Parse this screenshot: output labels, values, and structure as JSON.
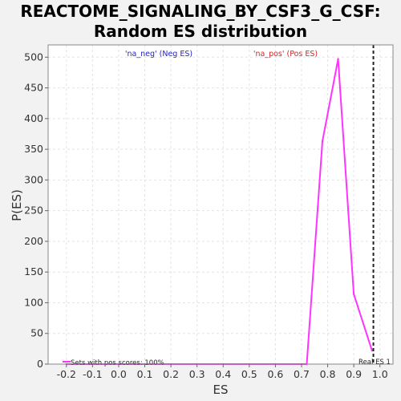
{
  "chart_data": {
    "type": "line",
    "title_line1": "REACTOME_SIGNALING_BY_CSF3_G_CSF:",
    "title_line2": "Random ES distribution",
    "xlabel": "ES",
    "ylabel": "P(ES)",
    "xlim": [
      -0.27,
      1.05
    ],
    "ylim": [
      0,
      520
    ],
    "x_ticks": [
      "-0.2",
      "-0.1",
      "0.0",
      "0.1",
      "0.2",
      "0.3",
      "0.4",
      "0.5",
      "0.6",
      "0.7",
      "0.8",
      "0.9",
      "1.0"
    ],
    "x_tick_values": [
      -0.2,
      -0.1,
      0.0,
      0.1,
      0.2,
      0.3,
      0.4,
      0.5,
      0.6,
      0.7,
      0.8,
      0.9,
      1.0
    ],
    "y_ticks": [
      "0",
      "50",
      "100",
      "150",
      "200",
      "250",
      "300",
      "350",
      "400",
      "450",
      "500"
    ],
    "y_tick_values": [
      0,
      50,
      100,
      150,
      200,
      250,
      300,
      350,
      400,
      450,
      500
    ],
    "grid": true,
    "series": [
      {
        "name": "Sets with pos scores: 100%",
        "color": "#ff33ff",
        "x": [
          -0.2,
          0.72,
          0.78,
          0.84,
          0.9,
          0.97
        ],
        "y": [
          0,
          0,
          363,
          497,
          114,
          22
        ]
      }
    ],
    "neg_label": "'na_neg' (Neg ES)",
    "neg_label_color": "#2222cc",
    "pos_label": "'na_pos' (Pos ES)",
    "pos_label_color": "#dd2222",
    "real_es": 0.975,
    "real_es_label": "Real ES 1"
  }
}
